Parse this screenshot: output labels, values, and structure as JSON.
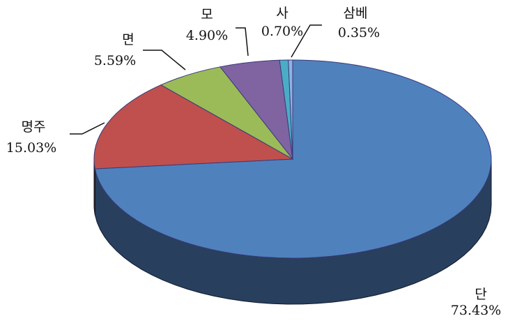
{
  "chart_data": {
    "type": "pie",
    "categories": [
      "단",
      "명주",
      "면",
      "모",
      "사",
      "삼베"
    ],
    "values": [
      73.43,
      15.03,
      5.59,
      4.9,
      0.7,
      0.35
    ],
    "value_labels": [
      "73.43%",
      "15.03%",
      "5.59%",
      "4.90%",
      "0.70%",
      "0.35%"
    ],
    "colors": [
      "#4f81bd",
      "#c0504d",
      "#9bbb59",
      "#8064a2",
      "#4bacc6",
      "#8db3e2"
    ]
  }
}
